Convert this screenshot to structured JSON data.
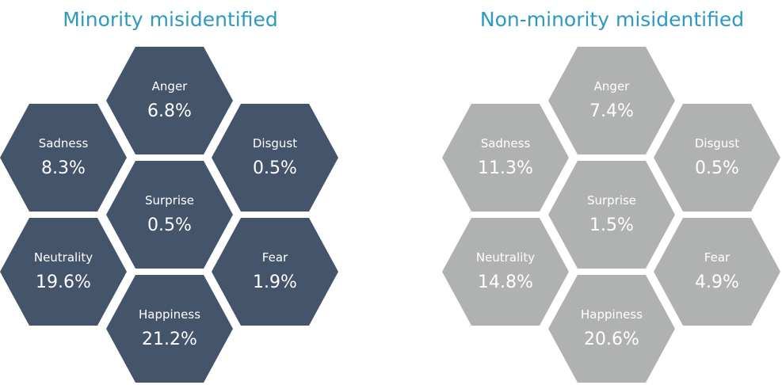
{
  "panels": [
    {
      "title": "Minority misidentified",
      "color": "#44546a",
      "cells": [
        {
          "emotion": "Anger",
          "value": "6.8%"
        },
        {
          "emotion": "Sadness",
          "value": "8.3%"
        },
        {
          "emotion": "Disgust",
          "value": "0.5%"
        },
        {
          "emotion": "Surprise",
          "value": "0.5%"
        },
        {
          "emotion": "Neutrality",
          "value": "19.6%"
        },
        {
          "emotion": "Fear",
          "value": "1.9%"
        },
        {
          "emotion": "Happiness",
          "value": "21.2%"
        }
      ]
    },
    {
      "title": "Non-minority misidentified",
      "color": "#b0b1b1",
      "cells": [
        {
          "emotion": "Anger",
          "value": "7.4%"
        },
        {
          "emotion": "Sadness",
          "value": "11.3%"
        },
        {
          "emotion": "Disgust",
          "value": "0.5%"
        },
        {
          "emotion": "Surprise",
          "value": "1.5%"
        },
        {
          "emotion": "Neutrality",
          "value": "14.8%"
        },
        {
          "emotion": "Fear",
          "value": "4.9%"
        },
        {
          "emotion": "Happiness",
          "value": "20.6%"
        }
      ]
    }
  ],
  "colors": {
    "title": "#2c9ac0",
    "label": "#ffffff"
  }
}
